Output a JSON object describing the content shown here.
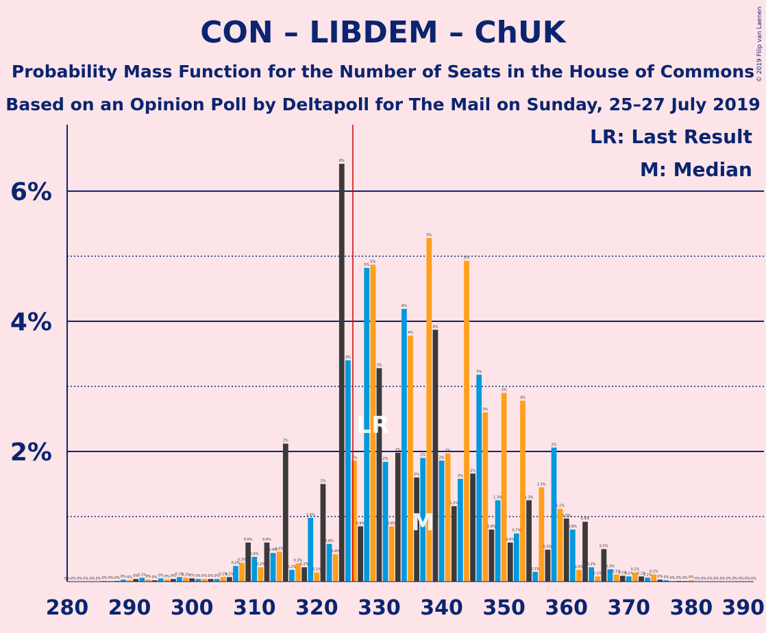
{
  "title": "CON – LIBDEM – ChUK",
  "subtitle1": "Probability Mass Function for the Number of Seats in the House of Commons",
  "subtitle2": "Based on an Opinion Poll by Deltapoll for The Mail on Sunday, 25–27 July 2019",
  "copyright": "© 2019 Filip van Laenen",
  "legend": {
    "last_result": "LR: Last Result",
    "median": "M: Median"
  },
  "colors": {
    "background": "#fde4e8",
    "axis": "#0a2470",
    "series": [
      "#0099dd",
      "#ff9f1c",
      "#3a3a3a"
    ],
    "last_result_line": "#cc0000"
  },
  "chart_data": {
    "type": "bar",
    "xlabel": "",
    "ylabel": "",
    "xlim": [
      280,
      390
    ],
    "ylim": [
      0,
      7
    ],
    "y_ticks": [
      {
        "value": 2,
        "label": "2%"
      },
      {
        "value": 4,
        "label": "4%"
      },
      {
        "value": 6,
        "label": "6%"
      }
    ],
    "x_ticks": [
      280,
      290,
      300,
      310,
      320,
      330,
      340,
      350,
      360,
      370,
      380,
      390
    ],
    "gridlines_solid": [
      2,
      4,
      6
    ],
    "gridlines_dotted": [
      1,
      3,
      5
    ],
    "last_result": 326,
    "last_result_label": "LR",
    "median": 337,
    "median_label": "M",
    "seats": [
      280,
      281,
      282,
      283,
      284,
      285,
      286,
      287,
      288,
      289,
      290,
      291,
      292,
      293,
      294,
      295,
      296,
      297,
      298,
      299,
      300,
      301,
      302,
      303,
      304,
      305,
      306,
      307,
      308,
      309,
      310,
      311,
      312,
      313,
      314,
      315,
      316,
      317,
      318,
      319,
      320,
      321,
      322,
      323,
      324,
      325,
      326,
      327,
      328,
      329,
      330,
      331,
      332,
      333,
      334,
      335,
      336,
      337,
      338,
      339,
      340,
      341,
      342,
      343,
      344,
      345,
      346,
      347,
      348,
      349,
      350,
      351,
      352,
      353,
      354,
      355,
      356,
      357,
      358,
      359,
      360,
      361,
      362,
      363,
      364,
      365,
      366,
      367,
      368,
      369,
      370,
      371,
      372,
      373,
      374,
      375,
      376,
      377,
      378,
      379,
      380,
      381,
      382,
      383,
      384,
      385,
      386,
      387,
      388,
      389,
      390
    ],
    "values": [
      0,
      0,
      0,
      0,
      0,
      0,
      0.01,
      0.01,
      0.01,
      0.03,
      0.02,
      0.04,
      0.06,
      0.03,
      0.02,
      0.05,
      0.03,
      0.04,
      0.07,
      0.06,
      0.05,
      0.04,
      0.04,
      0.04,
      0.04,
      0.07,
      0.07,
      0.24,
      0.29,
      0.6,
      0.38,
      0.22,
      0.6,
      0.44,
      0.46,
      2.12,
      0.18,
      0.28,
      0.22,
      0.98,
      0.14,
      1.5,
      0.58,
      0.42,
      6.42,
      3.4,
      1.86,
      0.85,
      4.82,
      4.87,
      3.28,
      1.84,
      0.85,
      1.98,
      4.19,
      3.78,
      1.6,
      1.9,
      5.28,
      3.87,
      1.86,
      1.97,
      1.16,
      1.58,
      4.93,
      1.66,
      3.18,
      2.6,
      0.8,
      1.25,
      2.9,
      0.6,
      0.74,
      2.78,
      1.25,
      0.15,
      1.45,
      0.49,
      2.06,
      1.12,
      0.97,
      0.8,
      0.18,
      0.92,
      0.22,
      0.08,
      0.5,
      0.19,
      0.11,
      0.09,
      0.08,
      0.14,
      0.08,
      0.06,
      0.11,
      0.03,
      0.02,
      0.01,
      0.01,
      0.01,
      0.02,
      0,
      0,
      0,
      0,
      0,
      0,
      0,
      0,
      0,
      0
    ],
    "bar_labels": [
      "0%",
      "0%",
      "0%",
      "0%",
      "0%",
      "0%",
      "0%",
      "0%",
      "0%",
      "0%",
      "0%",
      "0%",
      "0.1%",
      "0%",
      "0%",
      "0%",
      "0%",
      "0%",
      "0.1%",
      "0.1%",
      "0%",
      "0%",
      "0%",
      "0%",
      "0%",
      "0.1%",
      "0.1%",
      "0.2%",
      "0.3%",
      "0.6%",
      "0.4%",
      "0.2%",
      "0.6%",
      "0.4%",
      "0.5%",
      "2%",
      "0.2%",
      "0.3%",
      "0.2%",
      "1.0%",
      "0.1%",
      "2%",
      "0.6%",
      "0.4%",
      "6%",
      "3%",
      "2%",
      "0.8%",
      "5%",
      "5%",
      "3%",
      "2%",
      "0.8%",
      "2%",
      "4%",
      "4%",
      "2%",
      "2%",
      "5%",
      "4%",
      "2%",
      "2%",
      "1.2%",
      "2%",
      "5%",
      "2%",
      "3%",
      "3%",
      "0.8%",
      "1.3%",
      "3%",
      "0.6%",
      "0.7%",
      "3%",
      "1.3%",
      "0.1%",
      "1.5%",
      "0.5%",
      "2%",
      "1.1%",
      "1.0%",
      "0.8%",
      "0.2%",
      "0.9%",
      "0.2%",
      "0.1%",
      "0.5%",
      "0.2%",
      "0.1%",
      "0.1%",
      "0.1%",
      "0.1%",
      "0.1%",
      "0.1%",
      "0.1%",
      "0%",
      "0%",
      "0%",
      "0%",
      "0%",
      "0%",
      "0%",
      "0%",
      "0%",
      "0%",
      "0%",
      "0%",
      "0%",
      "0%",
      "0%",
      "0%"
    ]
  }
}
